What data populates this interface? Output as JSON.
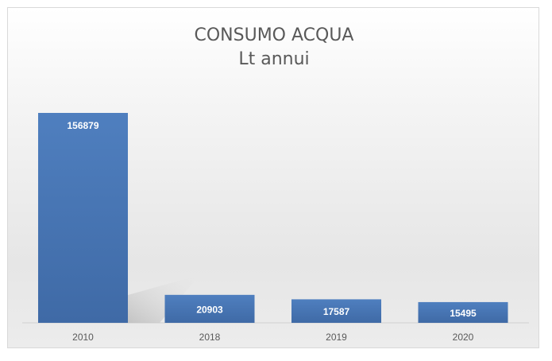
{
  "chart_data": {
    "type": "bar",
    "title": "CONSUMO ACQUA",
    "subtitle": "Lt annui",
    "categories": [
      "2010",
      "2018",
      "2019",
      "2020"
    ],
    "values": [
      156879,
      20903,
      17587,
      15495
    ],
    "xlabel": "",
    "ylabel": "",
    "ylim": [
      0,
      165000
    ],
    "grid": false,
    "legend": "none",
    "bar_color": "#4a78b5",
    "data_label_color": "#ffffff"
  }
}
